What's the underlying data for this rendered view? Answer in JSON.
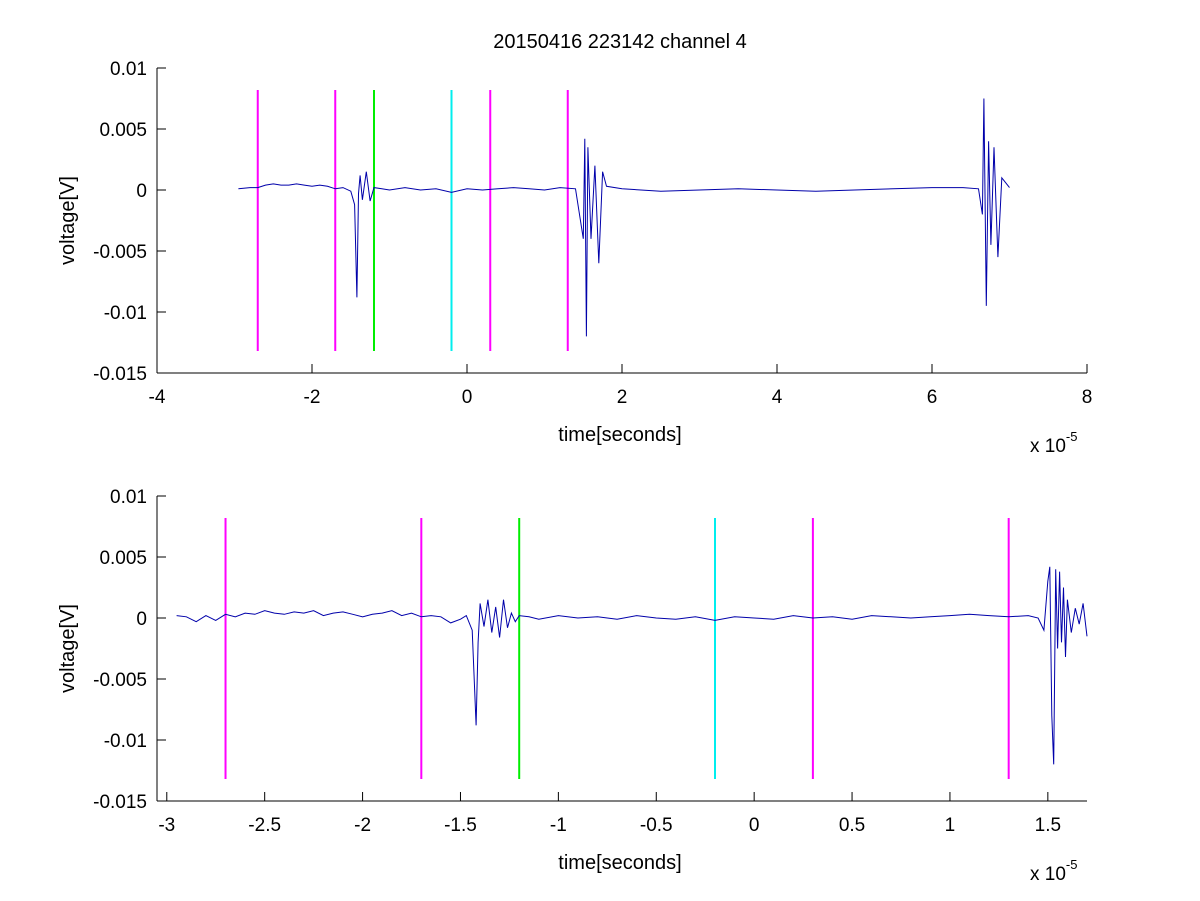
{
  "title": "20150416 223142 channel 4",
  "colors": {
    "trace": "#0000aa",
    "magenta": "#ff00ff",
    "green": "#00ee00",
    "cyan": "#00eeee",
    "axis": "#000000"
  },
  "chart_data": [
    {
      "type": "line",
      "xlabel": "time[seconds]",
      "ylabel": "voltage[V]",
      "x_multiplier": "x 10",
      "x_exponent": "-5",
      "xlim": [
        -4,
        8
      ],
      "ylim": [
        -0.015,
        0.01
      ],
      "xticks": [
        -4,
        -2,
        0,
        2,
        4,
        6,
        8
      ],
      "xtick_labels": [
        "-4",
        "-2",
        "0",
        "2",
        "4",
        "6",
        "8"
      ],
      "yticks": [
        0.01,
        0.005,
        0,
        -0.005,
        -0.01,
        -0.015
      ],
      "ytick_labels": [
        "0.01",
        "0.005",
        "0",
        "-0.005",
        "-0.01",
        "-0.015"
      ],
      "markers": [
        {
          "x": -2.7,
          "color": "magenta",
          "y_range": [
            -0.0132,
            0.0082
          ]
        },
        {
          "x": -1.7,
          "color": "magenta",
          "y_range": [
            -0.0132,
            0.0082
          ]
        },
        {
          "x": -1.2,
          "color": "green",
          "y_range": [
            -0.0132,
            0.0082
          ]
        },
        {
          "x": -0.2,
          "color": "cyan",
          "y_range": [
            -0.0132,
            0.0082
          ]
        },
        {
          "x": 0.3,
          "color": "magenta",
          "y_range": [
            -0.0132,
            0.0082
          ]
        },
        {
          "x": 1.3,
          "color": "magenta",
          "y_range": [
            -0.0132,
            0.0082
          ]
        }
      ],
      "series": [
        {
          "x": [
            -2.95,
            -2.8,
            -2.7,
            -2.6,
            -2.5,
            -2.4,
            -2.3,
            -2.2,
            -2.1,
            -2.0,
            -1.9,
            -1.8,
            -1.7,
            -1.6,
            -1.5,
            -1.45,
            -1.42,
            -1.4,
            -1.38,
            -1.35,
            -1.3,
            -1.25,
            -1.2,
            -1.1,
            -1.0,
            -0.8,
            -0.6,
            -0.4,
            -0.2,
            0.0,
            0.2,
            0.4,
            0.6,
            0.8,
            1.0,
            1.2,
            1.4,
            1.5,
            1.52,
            1.54,
            1.56,
            1.6,
            1.65,
            1.7,
            1.75,
            1.8,
            2.0,
            2.5,
            3.0,
            3.5,
            4.0,
            4.5,
            5.0,
            5.5,
            6.0,
            6.4,
            6.6,
            6.65,
            6.67,
            6.7,
            6.73,
            6.76,
            6.8,
            6.85,
            6.9,
            7.0
          ],
          "y": [
            0.0001,
            0.0002,
            0.0002,
            0.0004,
            0.0005,
            0.0004,
            0.0004,
            0.0005,
            0.0004,
            0.0003,
            0.0004,
            0.0003,
            0.0001,
            0.0002,
            -0.0001,
            -0.0012,
            -0.0088,
            -0.0003,
            0.0012,
            -0.0008,
            0.0015,
            -0.0009,
            0.0002,
            0.0001,
            0.0,
            0.0002,
            0.0,
            0.0001,
            -0.0002,
            0.0001,
            0.0,
            0.0001,
            0.0002,
            0.0001,
            0.0,
            0.0002,
            0.0001,
            -0.004,
            0.0042,
            -0.012,
            0.0035,
            -0.004,
            0.002,
            -0.006,
            0.0015,
            0.0003,
            0.0001,
            -0.0001,
            0.0,
            0.0001,
            0.0,
            -0.0001,
            0.0,
            0.0001,
            0.0002,
            0.0002,
            0.0001,
            -0.002,
            0.0075,
            -0.0095,
            0.004,
            -0.0045,
            0.0035,
            -0.0055,
            0.001,
            0.0002
          ]
        }
      ]
    },
    {
      "type": "line",
      "xlabel": "time[seconds]",
      "ylabel": "voltage[V]",
      "x_multiplier": "x 10",
      "x_exponent": "-5",
      "xlim": [
        -3.05,
        1.7
      ],
      "ylim": [
        -0.015,
        0.01
      ],
      "xticks": [
        -3,
        -2.5,
        -2,
        -1.5,
        -1,
        -0.5,
        0,
        0.5,
        1,
        1.5
      ],
      "xtick_labels": [
        "-3",
        "-2.5",
        "-2",
        "-1.5",
        "-1",
        "-0.5",
        "0",
        "0.5",
        "1",
        "1.5"
      ],
      "yticks": [
        0.01,
        0.005,
        0,
        -0.005,
        -0.01,
        -0.015
      ],
      "ytick_labels": [
        "0.01",
        "0.005",
        "0",
        "-0.005",
        "-0.01",
        "-0.015"
      ],
      "markers": [
        {
          "x": -2.7,
          "color": "magenta",
          "y_range": [
            -0.0132,
            0.0082
          ]
        },
        {
          "x": -1.7,
          "color": "magenta",
          "y_range": [
            -0.0132,
            0.0082
          ]
        },
        {
          "x": -1.2,
          "color": "green",
          "y_range": [
            -0.0132,
            0.0082
          ]
        },
        {
          "x": -0.2,
          "color": "cyan",
          "y_range": [
            -0.0132,
            0.0082
          ]
        },
        {
          "x": 0.3,
          "color": "magenta",
          "y_range": [
            -0.0132,
            0.0082
          ]
        },
        {
          "x": 1.3,
          "color": "magenta",
          "y_range": [
            -0.0132,
            0.0082
          ]
        }
      ],
      "series": [
        {
          "x": [
            -2.95,
            -2.9,
            -2.85,
            -2.8,
            -2.75,
            -2.7,
            -2.65,
            -2.6,
            -2.55,
            -2.5,
            -2.45,
            -2.4,
            -2.35,
            -2.3,
            -2.25,
            -2.2,
            -2.15,
            -2.1,
            -2.05,
            -2.0,
            -1.95,
            -1.9,
            -1.85,
            -1.8,
            -1.75,
            -1.7,
            -1.65,
            -1.6,
            -1.55,
            -1.5,
            -1.47,
            -1.44,
            -1.42,
            -1.41,
            -1.4,
            -1.38,
            -1.36,
            -1.34,
            -1.32,
            -1.3,
            -1.28,
            -1.26,
            -1.24,
            -1.22,
            -1.2,
            -1.15,
            -1.1,
            -1.0,
            -0.9,
            -0.8,
            -0.7,
            -0.6,
            -0.5,
            -0.4,
            -0.3,
            -0.2,
            -0.1,
            0.0,
            0.1,
            0.2,
            0.3,
            0.4,
            0.5,
            0.6,
            0.7,
            0.8,
            0.9,
            1.0,
            1.1,
            1.2,
            1.3,
            1.4,
            1.45,
            1.48,
            1.5,
            1.51,
            1.52,
            1.53,
            1.54,
            1.55,
            1.56,
            1.57,
            1.58,
            1.59,
            1.6,
            1.62,
            1.64,
            1.66,
            1.68,
            1.7
          ],
          "y": [
            0.0002,
            0.0001,
            -0.0003,
            0.0002,
            -0.0002,
            0.0003,
            0.0001,
            0.0004,
            0.0003,
            0.0006,
            0.0004,
            0.0003,
            0.0005,
            0.0004,
            0.0006,
            0.0002,
            0.0004,
            0.0005,
            0.0003,
            0.0001,
            0.0003,
            0.0004,
            0.0006,
            0.0002,
            0.0004,
            0.0001,
            0.0002,
            0.0001,
            -0.0004,
            -0.0001,
            0.0002,
            -0.001,
            -0.0088,
            -0.002,
            0.0012,
            -0.0007,
            0.0015,
            -0.0012,
            0.0009,
            -0.0016,
            0.0015,
            -0.0008,
            0.0004,
            -0.0003,
            0.0002,
            0.0001,
            -0.0001,
            0.0002,
            0.0,
            0.0001,
            -0.0001,
            0.0002,
            0.0,
            -0.0001,
            0.0001,
            -0.0002,
            0.0001,
            0.0,
            -0.0001,
            0.0002,
            0.0,
            0.0001,
            -0.0001,
            0.0002,
            0.0001,
            0.0,
            0.0001,
            0.0002,
            0.0003,
            0.0002,
            0.0001,
            0.0002,
            0.0,
            -0.001,
            0.003,
            0.0042,
            -0.008,
            -0.012,
            0.004,
            -0.0025,
            0.0038,
            -0.002,
            0.0025,
            -0.0032,
            0.0015,
            -0.0012,
            0.0008,
            -0.0005,
            0.0012,
            -0.0015
          ]
        }
      ]
    }
  ]
}
